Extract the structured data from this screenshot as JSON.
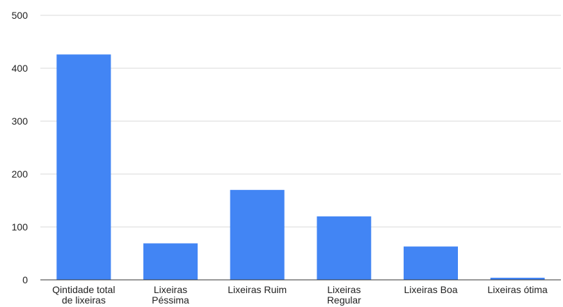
{
  "chart_data": {
    "type": "bar",
    "title": "",
    "xlabel": "",
    "ylabel": "",
    "categories": [
      [
        "Qintidade total",
        "de lixeiras"
      ],
      [
        "Lixeiras",
        "Péssima"
      ],
      [
        "Lixeiras Ruim"
      ],
      [
        "Lixeiras",
        "Regular"
      ],
      [
        "Lixeiras Boa"
      ],
      [
        "Lixeiras ótima"
      ]
    ],
    "values": [
      426,
      69,
      170,
      120,
      63,
      4
    ],
    "ylim": [
      0,
      500
    ],
    "yticks": [
      0,
      100,
      200,
      300,
      400,
      500
    ],
    "grid": true,
    "legend": "none",
    "bar_color": "#4285F4",
    "grid_color": "#d9d9d9",
    "axis_color": "#333333"
  }
}
